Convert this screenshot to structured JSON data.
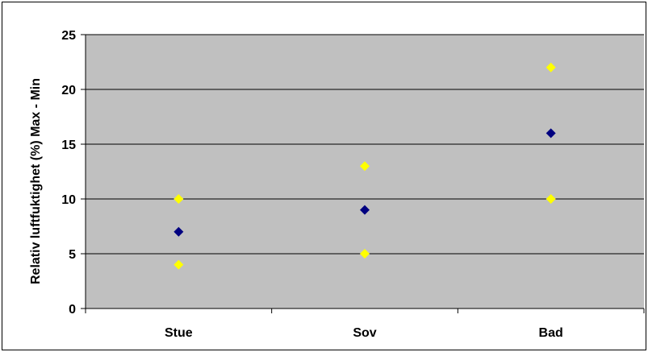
{
  "chart_data": {
    "type": "scatter",
    "title": "",
    "xlabel": "",
    "ylabel": "Relativ luftfuktighet (%) Max - Min",
    "categories": [
      "Stue",
      "Sov",
      "Bad"
    ],
    "ylim": [
      0,
      25
    ],
    "yticks": [
      0,
      5,
      10,
      15,
      20,
      25
    ],
    "grid": true,
    "legend": "none",
    "series": [
      {
        "values": [
          10,
          13,
          22
        ],
        "color": "#FFFF00",
        "marker": "diamond"
      },
      {
        "values": [
          7,
          9,
          16
        ],
        "color": "#000080",
        "marker": "diamond"
      },
      {
        "values": [
          4,
          5,
          10
        ],
        "color": "#FFFF00",
        "marker": "diamond"
      }
    ],
    "colors": {
      "plot_background": "#C0C0C0",
      "gridline": "#000000",
      "axis": "#000000"
    }
  }
}
